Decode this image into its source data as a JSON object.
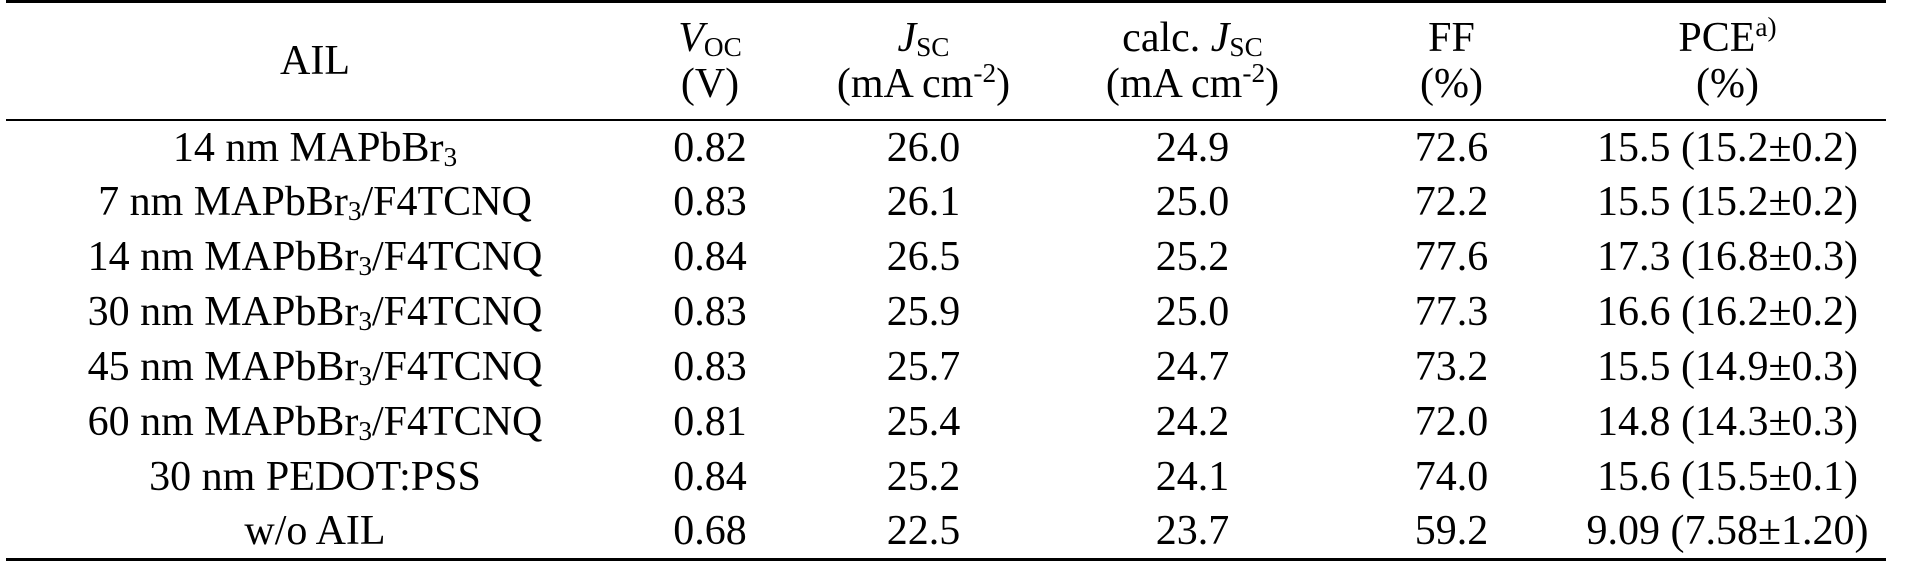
{
  "table": {
    "headers": {
      "ail": "AIL",
      "voc": {
        "symbol": "V",
        "sub": "OC",
        "unit": "(V)"
      },
      "jsc": {
        "symbol": "J",
        "sub": "SC",
        "unit_pre": "(mA cm",
        "unit_sup": "-2",
        "unit_post": ")"
      },
      "calc_jsc": {
        "prefix": "calc. ",
        "symbol": "J",
        "sub": "SC",
        "unit_pre": "(mA cm",
        "unit_sup": "-2",
        "unit_post": ")"
      },
      "ff": {
        "label": "FF",
        "unit": "(%)"
      },
      "pce": {
        "label": "PCE",
        "sup": "a)",
        "unit": "(%)"
      }
    },
    "rows": [
      {
        "ail": {
          "pre": "14 nm MAPbBr",
          "sub": "3",
          "post": ""
        },
        "voc": "0.82",
        "jsc": "26.0",
        "calc_jsc": "24.9",
        "ff": "72.6",
        "pce": "15.5 (15.2±0.2)"
      },
      {
        "ail": {
          "pre": "7 nm MAPbBr",
          "sub": "3",
          "post": "/F4TCNQ"
        },
        "voc": "0.83",
        "jsc": "26.1",
        "calc_jsc": "25.0",
        "ff": "72.2",
        "pce": "15.5 (15.2±0.2)"
      },
      {
        "ail": {
          "pre": "14 nm MAPbBr",
          "sub": "3",
          "post": "/F4TCNQ"
        },
        "voc": "0.84",
        "jsc": "26.5",
        "calc_jsc": "25.2",
        "ff": "77.6",
        "pce": "17.3 (16.8±0.3)"
      },
      {
        "ail": {
          "pre": "30 nm MAPbBr",
          "sub": "3",
          "post": "/F4TCNQ"
        },
        "voc": "0.83",
        "jsc": "25.9",
        "calc_jsc": "25.0",
        "ff": "77.3",
        "pce": "16.6 (16.2±0.2)"
      },
      {
        "ail": {
          "pre": "45 nm MAPbBr",
          "sub": "3",
          "post": "/F4TCNQ"
        },
        "voc": "0.83",
        "jsc": "25.7",
        "calc_jsc": "24.7",
        "ff": "73.2",
        "pce": "15.5 (14.9±0.3)"
      },
      {
        "ail": {
          "pre": "60 nm MAPbBr",
          "sub": "3",
          "post": "/F4TCNQ"
        },
        "voc": "0.81",
        "jsc": "25.4",
        "calc_jsc": "24.2",
        "ff": "72.0",
        "pce": "14.8 (14.3±0.3)"
      },
      {
        "ail": {
          "pre": "30 nm PEDOT:PSS",
          "sub": "",
          "post": ""
        },
        "voc": "0.84",
        "jsc": "25.2",
        "calc_jsc": "24.1",
        "ff": "74.0",
        "pce": "15.6 (15.5±0.1)"
      },
      {
        "ail": {
          "pre": "w/o AIL",
          "sub": "",
          "post": ""
        },
        "voc": "0.68",
        "jsc": "22.5",
        "calc_jsc": "23.7",
        "ff": "59.2",
        "pce": "9.09 (7.58±1.20)"
      }
    ]
  }
}
